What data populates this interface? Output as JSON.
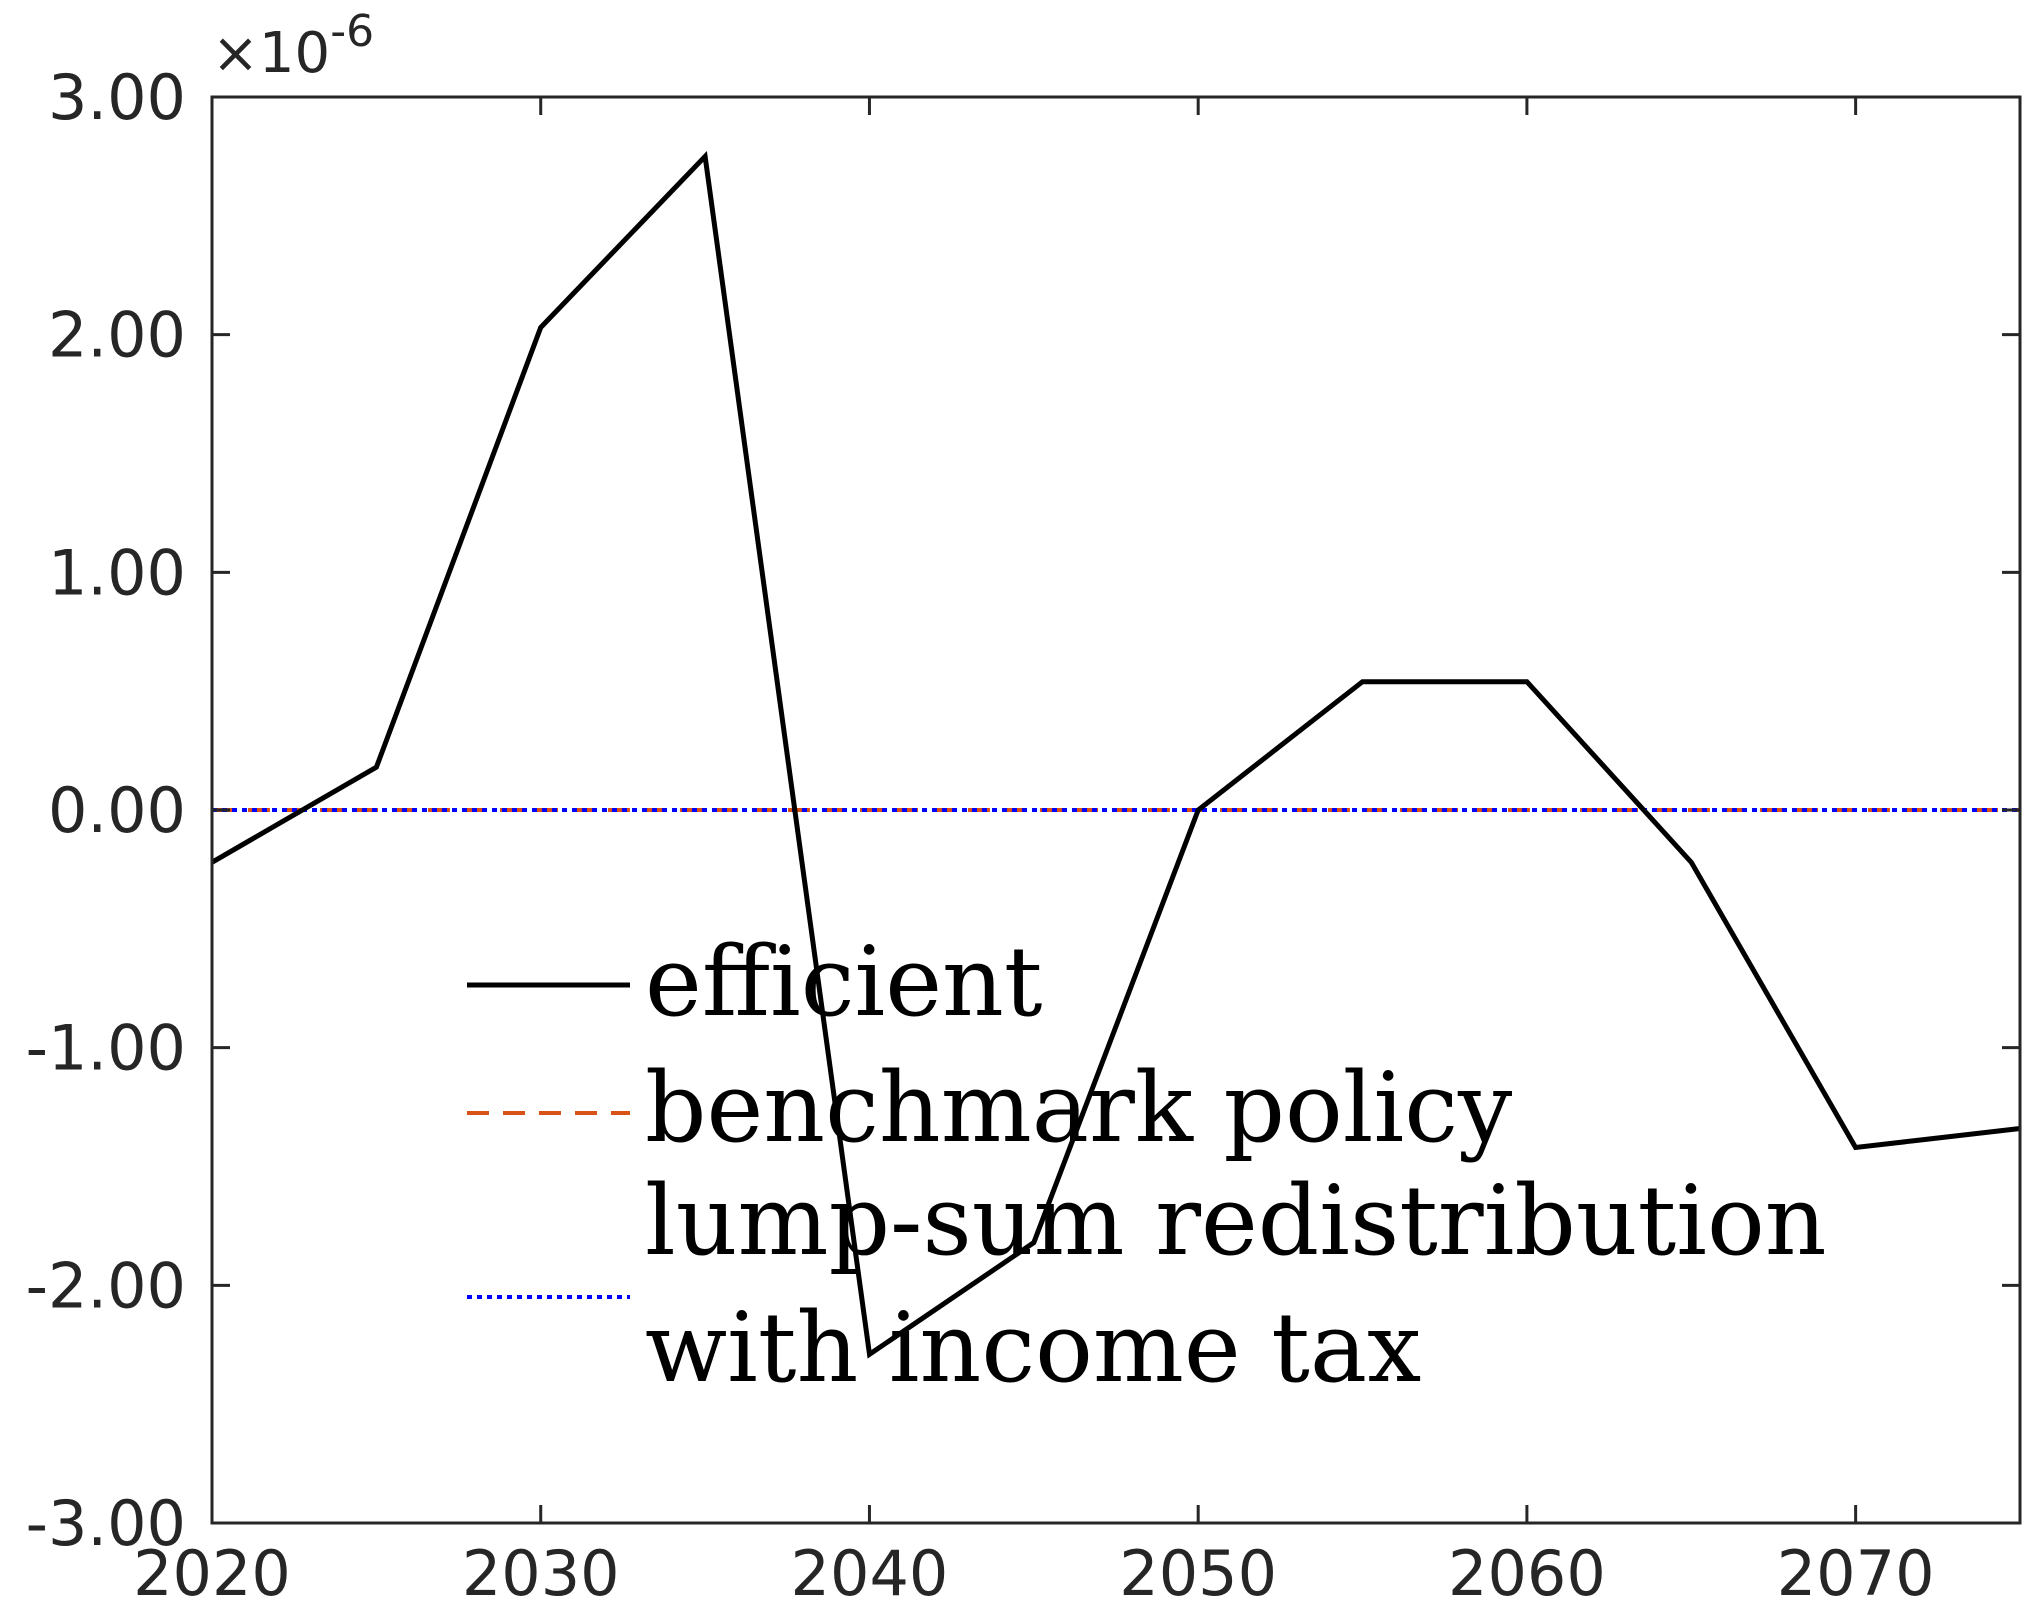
{
  "chart_data": {
    "type": "line",
    "title": "",
    "xlabel": "",
    "ylabel": "",
    "x": [
      2020,
      2025,
      2030,
      2035,
      2040,
      2045,
      2050,
      2055,
      2060,
      2065,
      2070,
      2075
    ],
    "xlim": [
      2020,
      2075
    ],
    "ylim": [
      -3.0,
      3.0
    ],
    "y_exponent_label": {
      "times": "×10",
      "power": "-6"
    },
    "xticks": [
      2020,
      2030,
      2040,
      2050,
      2060,
      2070
    ],
    "xtick_labels": [
      "2020",
      "2030",
      "2040",
      "2050",
      "2060",
      "2070"
    ],
    "yticks": [
      3.0,
      2.0,
      1.0,
      0.0,
      -1.0,
      -2.0,
      -3.0
    ],
    "ytick_labels": [
      "3.00",
      "2.00",
      "1.00",
      "0.00",
      "-1.00",
      "-2.00",
      "-3.00"
    ],
    "grid": false,
    "legend_position": "lower-left inside axes",
    "series": [
      {
        "name": "efficient",
        "color": "#000000",
        "style": "solid",
        "values": [
          -0.22,
          0.18,
          2.03,
          2.75,
          -2.29,
          -1.82,
          0.0,
          0.54,
          0.54,
          -0.22,
          -1.42,
          -1.34
        ]
      },
      {
        "name": "benchmark policy",
        "color": "#D95319",
        "style": "dashed",
        "values": [
          0,
          0,
          0,
          0,
          0,
          0,
          0,
          0,
          0,
          0,
          0,
          0
        ]
      },
      {
        "name_lines": [
          "lump-sum redistribution",
          "with income tax"
        ],
        "color": "#0000FF",
        "style": "dotted",
        "values": [
          0,
          0,
          0,
          0,
          0,
          0,
          0,
          0,
          0,
          0,
          0,
          0
        ]
      }
    ]
  }
}
